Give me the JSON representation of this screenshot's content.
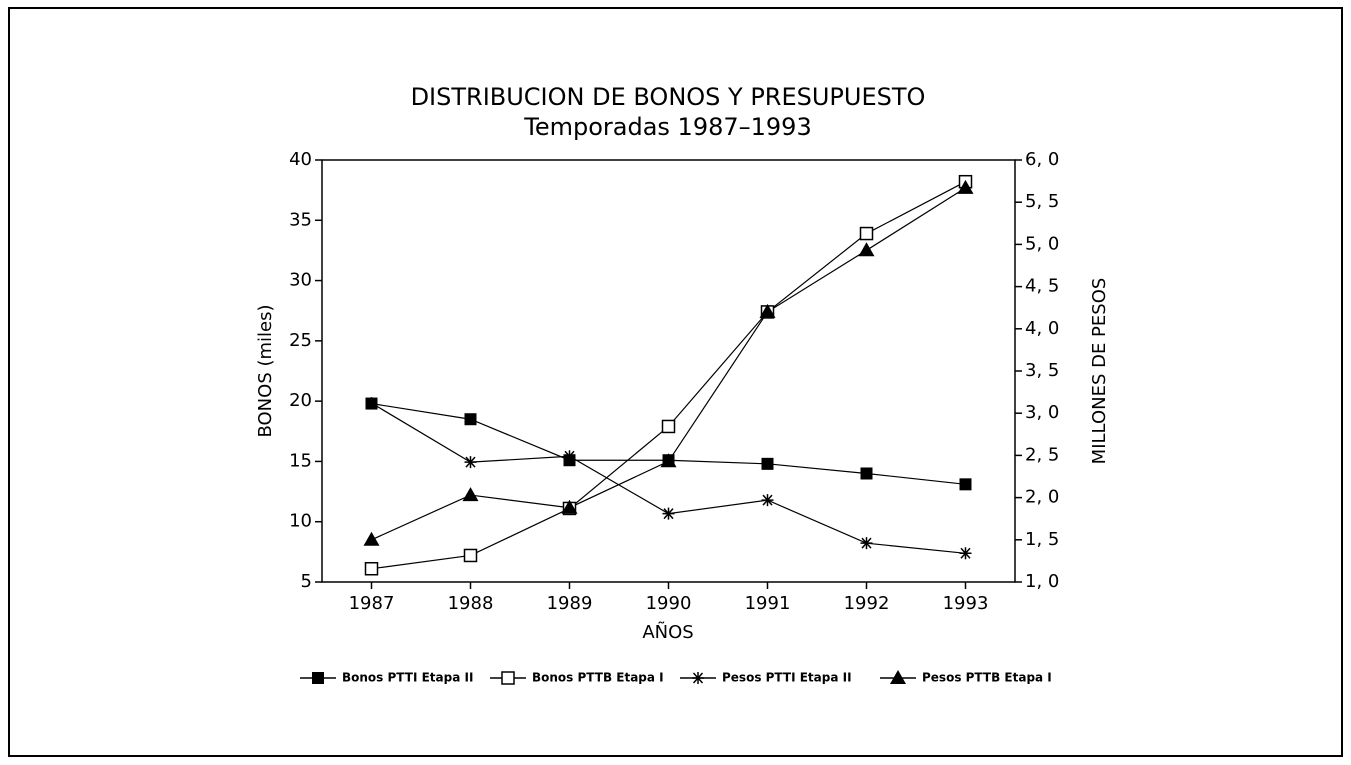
{
  "chart_data": {
    "type": "line",
    "title": "DISTRIBUCION DE BONOS Y PRESUPUESTO",
    "subtitle": "Temporadas 1987–1993",
    "x_label": "AÑOS",
    "y_label": "BONOS (miles)",
    "y2_label": "MILLONES DE PESOS",
    "categories": [
      "1987",
      "1988",
      "1989",
      "1990",
      "1991",
      "1992",
      "1993"
    ],
    "ylim": [
      5,
      40
    ],
    "yticks": [
      5,
      10,
      15,
      20,
      25,
      30,
      35,
      40
    ],
    "y2lim": [
      1,
      6
    ],
    "y2ticks": [
      {
        "value": 1,
        "label": "1, 0"
      },
      {
        "value": 1.5,
        "label": "1, 5"
      },
      {
        "value": 2,
        "label": "2, 0"
      },
      {
        "value": 2.5,
        "label": "2, 5"
      },
      {
        "value": 3,
        "label": "3, 0"
      },
      {
        "value": 3.5,
        "label": "3, 5"
      },
      {
        "value": 4,
        "label": "4, 0"
      },
      {
        "value": 4.5,
        "label": "4, 5"
      },
      {
        "value": 5,
        "label": "5, 0"
      },
      {
        "value": 5.5,
        "label": "5, 5"
      },
      {
        "value": 6,
        "label": "6, 0"
      }
    ],
    "legend": "bottom",
    "series": [
      {
        "name": "Bonos PTTI Etapa II",
        "color": "#000000",
        "marker": "square-filled",
        "values": [
          19.8,
          18.5,
          15.1,
          15.1,
          14.8,
          14.0,
          13.1
        ]
      },
      {
        "name": "Bonos PTTB Etapa I",
        "color": "#000000",
        "marker": "square-open",
        "values": [
          6.1,
          7.2,
          11.1,
          17.9,
          27.4,
          33.9,
          38.2
        ]
      },
      {
        "name": "Pesos PTTI Etapa II",
        "color": "#000000",
        "marker": "asterisk",
        "axis": "y2",
        "values": [
          3.12,
          2.42,
          2.49,
          1.81,
          1.97,
          1.46,
          1.34
        ]
      },
      {
        "name": "Pesos PTTB Etapa I",
        "color": "#000000",
        "marker": "triangle",
        "axis": "y2",
        "values": [
          1.5,
          2.03,
          1.88,
          2.43,
          4.2,
          4.93,
          5.67
        ]
      }
    ]
  }
}
